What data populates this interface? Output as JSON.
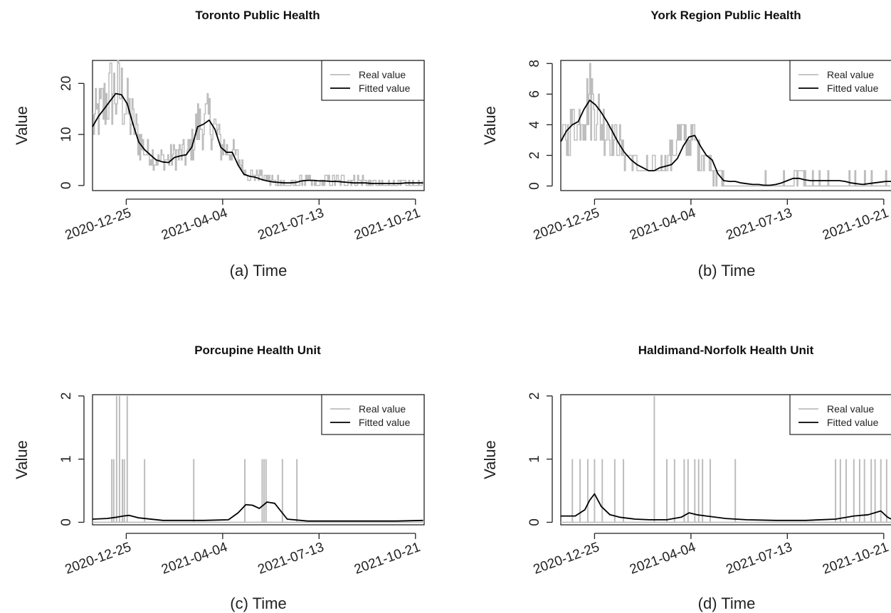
{
  "chart_data": [
    {
      "type": "line",
      "title": "Toronto Public Health",
      "xlabel": "(a) Time",
      "ylabel": "Value",
      "x_tick_labels": [
        "2020-12-25",
        "2021-04-04",
        "2021-07-13",
        "2021-10-21"
      ],
      "y_ticks": [
        0,
        10,
        20
      ],
      "ylim": [
        -1,
        24.5
      ],
      "legend": {
        "position": "top-right",
        "entries": [
          "Real value",
          "Fitted value"
        ]
      },
      "real_style": "noisy",
      "x_start": "2020-11-20",
      "x_end": "2021-10-30",
      "series": [
        {
          "name": "Real value",
          "color": "#bdbdbd",
          "x": [
            "2020-11-20",
            "2020-11-26",
            "2020-12-02",
            "2020-12-08",
            "2020-12-14",
            "2020-12-20",
            "2020-12-26",
            "2021-01-01",
            "2021-01-07",
            "2021-01-13",
            "2021-01-19",
            "2021-01-25",
            "2021-02-01",
            "2021-02-07",
            "2021-02-13",
            "2021-02-19",
            "2021-02-25",
            "2021-03-03",
            "2021-03-09",
            "2021-03-15",
            "2021-03-21",
            "2021-03-27",
            "2021-04-02",
            "2021-04-08",
            "2021-04-14",
            "2021-04-20",
            "2021-04-26",
            "2021-05-02",
            "2021-05-08",
            "2021-05-14",
            "2021-05-20",
            "2021-05-26",
            "2021-06-01",
            "2021-06-07",
            "2021-06-13",
            "2021-06-19",
            "2021-06-25",
            "2021-07-01",
            "2021-07-07",
            "2021-07-13",
            "2021-07-19",
            "2021-07-25",
            "2021-07-31",
            "2021-08-06",
            "2021-08-12",
            "2021-08-18",
            "2021-08-24",
            "2021-08-30",
            "2021-09-05",
            "2021-09-11",
            "2021-09-17",
            "2021-09-23",
            "2021-09-29",
            "2021-10-05",
            "2021-10-11",
            "2021-10-17",
            "2021-10-23",
            "2021-10-29"
          ],
          "values": [
            12,
            14,
            16,
            18,
            18,
            18,
            15,
            12,
            9,
            7,
            6,
            5,
            5,
            5,
            6,
            6,
            6,
            8,
            12,
            12,
            13,
            11,
            8,
            7,
            7,
            5,
            3,
            2,
            2,
            2,
            1,
            1,
            1,
            0,
            0,
            0,
            1,
            1,
            0,
            0,
            1,
            1,
            1,
            1,
            1,
            1,
            1,
            1,
            0,
            0,
            0,
            0,
            0,
            0,
            0,
            0,
            0,
            0
          ]
        },
        {
          "name": "Fitted value",
          "color": "#000000",
          "x": [
            "2020-11-20",
            "2020-11-26",
            "2020-12-02",
            "2020-12-08",
            "2020-12-14",
            "2020-12-20",
            "2020-12-26",
            "2021-01-01",
            "2021-01-07",
            "2021-01-13",
            "2021-01-19",
            "2021-01-25",
            "2021-02-01",
            "2021-02-07",
            "2021-02-13",
            "2021-02-19",
            "2021-02-25",
            "2021-03-03",
            "2021-03-09",
            "2021-03-15",
            "2021-03-21",
            "2021-03-27",
            "2021-04-02",
            "2021-04-08",
            "2021-04-14",
            "2021-04-20",
            "2021-04-26",
            "2021-05-02",
            "2021-05-08",
            "2021-05-14",
            "2021-05-20",
            "2021-05-26",
            "2021-06-01",
            "2021-06-07",
            "2021-06-13",
            "2021-06-19",
            "2021-06-25",
            "2021-07-01",
            "2021-07-07",
            "2021-07-13",
            "2021-07-19",
            "2021-07-25",
            "2021-07-31",
            "2021-08-06",
            "2021-08-12",
            "2021-08-18",
            "2021-08-24",
            "2021-08-30",
            "2021-09-05",
            "2021-09-11",
            "2021-09-17",
            "2021-09-23",
            "2021-09-29",
            "2021-10-05",
            "2021-10-11",
            "2021-10-17",
            "2021-10-23",
            "2021-10-29"
          ],
          "values": [
            11.5,
            13.5,
            15.0,
            16.5,
            18.0,
            17.8,
            16.0,
            12.0,
            8.5,
            7.0,
            6.0,
            5.0,
            4.6,
            4.5,
            5.5,
            5.8,
            6.0,
            7.5,
            11.5,
            12.0,
            12.8,
            11.0,
            7.5,
            6.5,
            6.5,
            4.0,
            2.2,
            1.8,
            1.6,
            1.2,
            0.9,
            0.7,
            0.6,
            0.5,
            0.5,
            0.6,
            0.9,
            1.0,
            1.0,
            0.9,
            0.9,
            0.8,
            0.8,
            0.7,
            0.6,
            0.5,
            0.5,
            0.5,
            0.4,
            0.4,
            0.4,
            0.4,
            0.4,
            0.4,
            0.5,
            0.5,
            0.5,
            0.5
          ]
        }
      ]
    },
    {
      "type": "line",
      "title": "York Region Public Health",
      "xlabel": "(b) Time",
      "ylabel": "Value",
      "x_tick_labels": [
        "2020-12-25",
        "2021-04-04",
        "2021-07-13",
        "2021-10-21"
      ],
      "y_ticks": [
        0,
        2,
        4,
        6,
        8
      ],
      "ylim": [
        -0.3,
        8.2
      ],
      "legend": {
        "position": "top-right",
        "entries": [
          "Real value",
          "Fitted value"
        ]
      },
      "real_style": "noisy",
      "x_start": "2020-11-20",
      "x_end": "2021-10-30",
      "series": [
        {
          "name": "Real value",
          "color": "#bdbdbd",
          "x": [
            "2020-11-20",
            "2020-11-26",
            "2020-12-02",
            "2020-12-08",
            "2020-12-14",
            "2020-12-20",
            "2020-12-26",
            "2021-01-01",
            "2021-01-07",
            "2021-01-13",
            "2021-01-19",
            "2021-01-25",
            "2021-02-01",
            "2021-02-07",
            "2021-02-13",
            "2021-02-19",
            "2021-02-25",
            "2021-03-03",
            "2021-03-09",
            "2021-03-15",
            "2021-03-21",
            "2021-03-27",
            "2021-04-02",
            "2021-04-08",
            "2021-04-14",
            "2021-04-20",
            "2021-04-26",
            "2021-05-02",
            "2021-05-08",
            "2021-05-14",
            "2021-05-20",
            "2021-05-26",
            "2021-06-01",
            "2021-06-07",
            "2021-06-13",
            "2021-06-19",
            "2021-06-25",
            "2021-07-01",
            "2021-07-07",
            "2021-07-13",
            "2021-07-19",
            "2021-07-25",
            "2021-07-31",
            "2021-08-06",
            "2021-08-12",
            "2021-08-18",
            "2021-08-24",
            "2021-08-30",
            "2021-09-05",
            "2021-09-11",
            "2021-09-17",
            "2021-09-23",
            "2021-09-29",
            "2021-10-05",
            "2021-10-11",
            "2021-10-17",
            "2021-10-23",
            "2021-10-29"
          ],
          "values": [
            3,
            3,
            4,
            4,
            5,
            6,
            5,
            4,
            4,
            3,
            3,
            2,
            2,
            1,
            1,
            1,
            1,
            1,
            2,
            2,
            3,
            3,
            3,
            3,
            2,
            2,
            1,
            1,
            0,
            0,
            0,
            0,
            0,
            0,
            0,
            0,
            0,
            0,
            0,
            0,
            0,
            1,
            0,
            0,
            0,
            0,
            0,
            0,
            0,
            0,
            0,
            0,
            0,
            0,
            0,
            0,
            0,
            0
          ]
        },
        {
          "name": "Fitted value",
          "color": "#000000",
          "x": [
            "2020-11-20",
            "2020-11-26",
            "2020-12-02",
            "2020-12-08",
            "2020-12-14",
            "2020-12-20",
            "2020-12-26",
            "2021-01-01",
            "2021-01-07",
            "2021-01-13",
            "2021-01-19",
            "2021-01-25",
            "2021-02-01",
            "2021-02-07",
            "2021-02-13",
            "2021-02-19",
            "2021-02-25",
            "2021-03-03",
            "2021-03-09",
            "2021-03-15",
            "2021-03-21",
            "2021-03-27",
            "2021-04-02",
            "2021-04-08",
            "2021-04-14",
            "2021-04-20",
            "2021-04-26",
            "2021-05-02",
            "2021-05-08",
            "2021-05-14",
            "2021-05-20",
            "2021-05-26",
            "2021-06-01",
            "2021-06-07",
            "2021-06-13",
            "2021-06-19",
            "2021-06-25",
            "2021-07-01",
            "2021-07-07",
            "2021-07-13",
            "2021-07-19",
            "2021-07-25",
            "2021-07-31",
            "2021-08-06",
            "2021-08-12",
            "2021-08-18",
            "2021-08-24",
            "2021-08-30",
            "2021-09-05",
            "2021-09-11",
            "2021-09-17",
            "2021-09-23",
            "2021-09-29",
            "2021-10-05",
            "2021-10-11",
            "2021-10-17",
            "2021-10-23",
            "2021-10-29"
          ],
          "values": [
            2.9,
            3.6,
            4.0,
            4.2,
            5.0,
            5.6,
            5.3,
            4.8,
            4.2,
            3.5,
            2.8,
            2.2,
            1.7,
            1.4,
            1.2,
            1.0,
            1.0,
            1.2,
            1.3,
            1.4,
            1.8,
            2.6,
            3.2,
            3.3,
            2.6,
            2.0,
            1.7,
            0.8,
            0.35,
            0.3,
            0.3,
            0.2,
            0.15,
            0.1,
            0.1,
            0.05,
            0.05,
            0.1,
            0.2,
            0.35,
            0.5,
            0.5,
            0.4,
            0.35,
            0.35,
            0.35,
            0.35,
            0.35,
            0.35,
            0.3,
            0.2,
            0.15,
            0.1,
            0.15,
            0.2,
            0.25,
            0.3,
            0.3
          ]
        }
      ]
    },
    {
      "type": "line",
      "title": "Porcupine Health Unit",
      "xlabel": "(c) Time",
      "ylabel": "Value",
      "x_tick_labels": [
        "2020-12-25",
        "2021-04-04",
        "2021-07-13",
        "2021-10-21"
      ],
      "y_ticks": [
        0,
        1,
        2
      ],
      "ylim": [
        -0.04,
        2.02
      ],
      "legend": {
        "position": "top-right",
        "entries": [
          "Real value",
          "Fitted value"
        ]
      },
      "real_style": "spikes",
      "x_start": "2020-11-20",
      "x_end": "2021-10-30",
      "series": [
        {
          "name": "Real value",
          "color": "#bdbdbd",
          "x": [
            "2020-12-10",
            "2020-12-12",
            "2020-12-15",
            "2020-12-18",
            "2020-12-21",
            "2020-12-23",
            "2020-12-26",
            "2021-01-13",
            "2021-03-05",
            "2021-04-27",
            "2021-05-15",
            "2021-05-17",
            "2021-05-19",
            "2021-06-05",
            "2021-06-20"
          ],
          "values": [
            1,
            1,
            2,
            2,
            1,
            1,
            2,
            1,
            1,
            1,
            1,
            1,
            1,
            1,
            1
          ]
        },
        {
          "name": "Fitted value",
          "color": "#000000",
          "x": [
            "2020-11-20",
            "2020-12-05",
            "2020-12-15",
            "2020-12-22",
            "2020-12-28",
            "2021-01-07",
            "2021-02-01",
            "2021-03-15",
            "2021-04-10",
            "2021-04-20",
            "2021-04-28",
            "2021-05-05",
            "2021-05-12",
            "2021-05-20",
            "2021-05-28",
            "2021-06-10",
            "2021-07-01",
            "2021-08-01",
            "2021-09-01",
            "2021-10-01",
            "2021-10-29"
          ],
          "values": [
            0.05,
            0.06,
            0.08,
            0.1,
            0.11,
            0.07,
            0.03,
            0.03,
            0.04,
            0.15,
            0.28,
            0.27,
            0.22,
            0.32,
            0.3,
            0.05,
            0.02,
            0.02,
            0.02,
            0.02,
            0.03
          ]
        }
      ]
    },
    {
      "type": "line",
      "title": "Haldimand-Norfolk Health Unit",
      "xlabel": "(d) Time",
      "ylabel": "Value",
      "x_tick_labels": [
        "2020-12-25",
        "2021-04-04",
        "2021-07-13",
        "2021-10-21"
      ],
      "y_ticks": [
        0,
        1,
        2
      ],
      "ylim": [
        -0.04,
        2.02
      ],
      "legend": {
        "position": "top-right",
        "entries": [
          "Real value",
          "Fitted value"
        ]
      },
      "real_style": "spikes",
      "x_start": "2020-11-20",
      "x_end": "2021-10-30",
      "series": [
        {
          "name": "Real value",
          "color": "#bdbdbd",
          "x": [
            "2020-12-02",
            "2020-12-10",
            "2020-12-18",
            "2020-12-25",
            "2021-01-02",
            "2021-01-15",
            "2021-01-24",
            "2021-02-25",
            "2021-03-10",
            "2021-03-18",
            "2021-03-28",
            "2021-04-01",
            "2021-04-08",
            "2021-04-12",
            "2021-04-16",
            "2021-04-24",
            "2021-05-20",
            "2021-09-01",
            "2021-09-06",
            "2021-09-12",
            "2021-09-20",
            "2021-09-26",
            "2021-10-01",
            "2021-10-08",
            "2021-10-12",
            "2021-10-18",
            "2021-10-24"
          ],
          "values": [
            1,
            1,
            1,
            1,
            1,
            1,
            1,
            2,
            1,
            1,
            1,
            1,
            1,
            1,
            1,
            1,
            1,
            1,
            1,
            1,
            1,
            1,
            1,
            1,
            1,
            1,
            1
          ]
        },
        {
          "name": "Fitted value",
          "color": "#000000",
          "x": [
            "2020-11-20",
            "2020-12-05",
            "2020-12-15",
            "2020-12-20",
            "2020-12-25",
            "2021-01-01",
            "2021-01-10",
            "2021-01-20",
            "2021-02-05",
            "2021-02-20",
            "2021-03-10",
            "2021-03-25",
            "2021-04-02",
            "2021-04-10",
            "2021-04-20",
            "2021-05-10",
            "2021-06-01",
            "2021-07-01",
            "2021-08-01",
            "2021-09-01",
            "2021-09-20",
            "2021-10-05",
            "2021-10-18",
            "2021-10-25",
            "2021-10-29"
          ],
          "values": [
            0.1,
            0.1,
            0.2,
            0.35,
            0.45,
            0.25,
            0.12,
            0.08,
            0.05,
            0.04,
            0.04,
            0.08,
            0.15,
            0.12,
            0.1,
            0.06,
            0.04,
            0.03,
            0.03,
            0.05,
            0.1,
            0.12,
            0.18,
            0.08,
            0.05
          ]
        }
      ]
    }
  ]
}
